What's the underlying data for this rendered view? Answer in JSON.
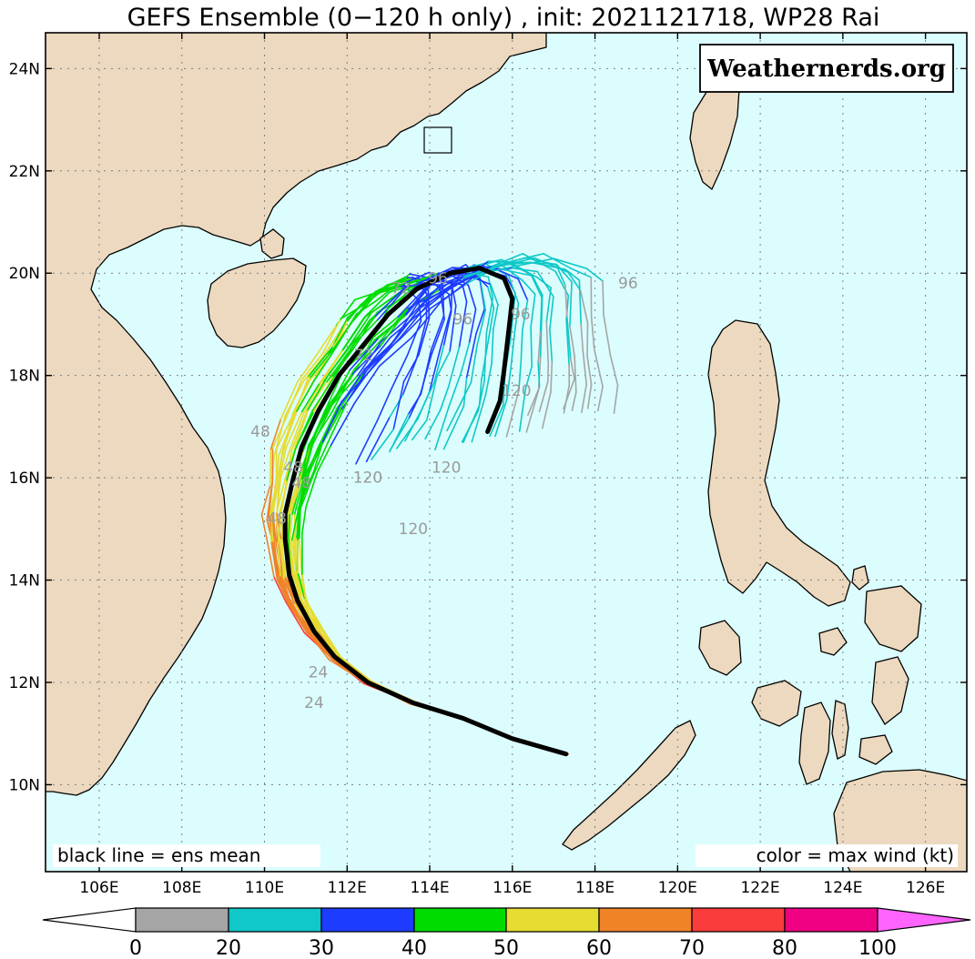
{
  "title": "GEFS Ensemble (0−120 h only) , init: 2021121718, WP28 Rai",
  "brand": "Weathernerds.org",
  "note_left": "black line = ens mean",
  "note_right": "color = max wind (kt)",
  "axes": {
    "lon_range": [
      104.7,
      127.0
    ],
    "lat_range": [
      8.3,
      24.7
    ],
    "lat_ticks": [
      {
        "value": 10,
        "label": "10N"
      },
      {
        "value": 12,
        "label": "12N"
      },
      {
        "value": 14,
        "label": "14N"
      },
      {
        "value": 16,
        "label": "16N"
      },
      {
        "value": 18,
        "label": "18N"
      },
      {
        "value": 20,
        "label": "20N"
      },
      {
        "value": 22,
        "label": "22N"
      },
      {
        "value": 24,
        "label": "24N"
      }
    ],
    "lon_ticks": [
      {
        "value": 106,
        "label": "106E"
      },
      {
        "value": 108,
        "label": "108E"
      },
      {
        "value": 110,
        "label": "110E"
      },
      {
        "value": 112,
        "label": "112E"
      },
      {
        "value": 114,
        "label": "114E"
      },
      {
        "value": 116,
        "label": "116E"
      },
      {
        "value": 118,
        "label": "118E"
      },
      {
        "value": 120,
        "label": "120E"
      },
      {
        "value": 122,
        "label": "122E"
      },
      {
        "value": 124,
        "label": "124E"
      },
      {
        "value": 126,
        "label": "126E"
      }
    ],
    "grid": "dotted"
  },
  "colors": {
    "ocean": "#dcfdfd",
    "land": "#ecd9bf",
    "coast": "#000000",
    "mean_track": "#000000"
  },
  "colorbar": {
    "bins": [
      {
        "color": "#ffffff"
      },
      {
        "color": "#a5a5a5"
      },
      {
        "color": "#10c8c8"
      },
      {
        "color": "#1e3cff"
      },
      {
        "color": "#00dc00"
      },
      {
        "color": "#e6dc32"
      },
      {
        "color": "#f08228"
      },
      {
        "color": "#fa3c3c"
      },
      {
        "color": "#f00082"
      },
      {
        "color": "#ff64ff"
      }
    ],
    "labels": [
      "0",
      "20",
      "30",
      "40",
      "50",
      "60",
      "70",
      "80",
      "100"
    ]
  },
  "hour_labels": [
    {
      "text": "24",
      "lon": 111.2,
      "lat": 11.5
    },
    {
      "text": "24",
      "lon": 111.3,
      "lat": 12.1
    },
    {
      "text": "48",
      "lon": 109.9,
      "lat": 16.8
    },
    {
      "text": "48",
      "lon": 110.3,
      "lat": 15.1
    },
    {
      "text": "48",
      "lon": 110.9,
      "lat": 15.8
    },
    {
      "text": "48",
      "lon": 110.7,
      "lat": 16.1
    },
    {
      "text": "72",
      "lon": 113.3,
      "lat": 19.6
    },
    {
      "text": "72",
      "lon": 112.4,
      "lat": 18.3
    },
    {
      "text": "96",
      "lon": 114.2,
      "lat": 19.8
    },
    {
      "text": "96",
      "lon": 118.8,
      "lat": 19.7
    },
    {
      "text": "96",
      "lon": 114.8,
      "lat": 19.0
    },
    {
      "text": "96",
      "lon": 116.2,
      "lat": 19.1
    },
    {
      "text": "120",
      "lon": 112.5,
      "lat": 15.9
    },
    {
      "text": "120",
      "lon": 114.4,
      "lat": 16.1
    },
    {
      "text": "120",
      "lon": 116.1,
      "lat": 17.6
    },
    {
      "text": "120",
      "lon": 113.6,
      "lat": 14.9
    }
  ],
  "chart_data": {
    "type": "line",
    "title": "GEFS Ensemble (0−120 h only) , init: 2021121718, WP28 Rai",
    "xlabel": "",
    "ylabel": "",
    "xlim": [
      104.7,
      127.0
    ],
    "ylim": [
      8.3,
      24.7
    ],
    "series": [
      {
        "name": "ens mean",
        "color": "#000000",
        "points": [
          [
            117.3,
            10.6
          ],
          [
            116.0,
            10.9
          ],
          [
            114.8,
            11.3
          ],
          [
            113.6,
            11.6
          ],
          [
            112.5,
            12.0
          ],
          [
            111.7,
            12.5
          ],
          [
            111.2,
            13.0
          ],
          [
            110.8,
            13.6
          ],
          [
            110.6,
            14.1
          ],
          [
            110.5,
            14.8
          ],
          [
            110.5,
            15.3
          ],
          [
            110.7,
            16.0
          ],
          [
            110.9,
            16.6
          ],
          [
            111.3,
            17.3
          ],
          [
            111.8,
            18.0
          ],
          [
            112.4,
            18.6
          ],
          [
            113.0,
            19.2
          ],
          [
            113.7,
            19.7
          ],
          [
            114.5,
            20.0
          ],
          [
            115.2,
            20.1
          ],
          [
            115.8,
            19.9
          ],
          [
            116.0,
            19.5
          ],
          [
            115.9,
            18.8
          ],
          [
            115.8,
            18.1
          ],
          [
            115.7,
            17.5
          ],
          [
            115.4,
            16.9
          ]
        ]
      }
    ]
  }
}
